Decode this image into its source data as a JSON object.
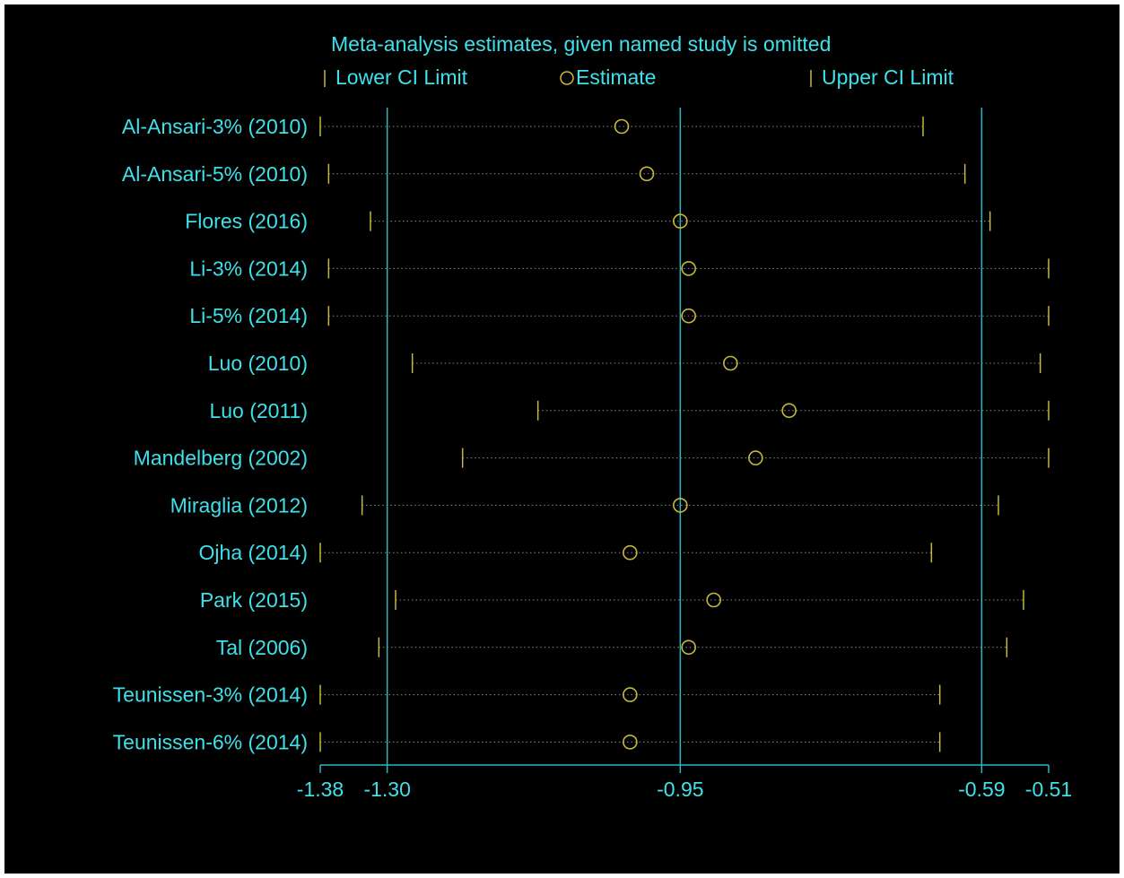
{
  "colors": {
    "background": "#000000",
    "text": "#3fe0ea",
    "axis": "#2ab7c0",
    "marker": "#c7b83a",
    "ci_dots": "#8a8a8a"
  },
  "chart_data": {
    "type": "forest",
    "title": "Meta-analysis estimates, given named study is omitted",
    "legend": {
      "lower": "Lower CI Limit",
      "estimate": "Estimate",
      "upper": "Upper CI Limit"
    },
    "xlim": [
      -1.38,
      -0.51
    ],
    "xticks": [
      {
        "value": -1.38,
        "label": "-1.38"
      },
      {
        "value": -1.3,
        "label": "-1.30"
      },
      {
        "value": -0.95,
        "label": "-0.95"
      },
      {
        "value": -0.59,
        "label": "-0.59"
      },
      {
        "value": -0.51,
        "label": "-0.51"
      }
    ],
    "reference_lines": [
      -1.3,
      -0.95,
      -0.59
    ],
    "studies": [
      {
        "name": "Al-Ansari-3% (2010)",
        "lower": -1.38,
        "estimate": -1.02,
        "upper": -0.66
      },
      {
        "name": "Al-Ansari-5% (2010)",
        "lower": -1.37,
        "estimate": -0.99,
        "upper": -0.61
      },
      {
        "name": "Flores (2016)",
        "lower": -1.32,
        "estimate": -0.95,
        "upper": -0.58
      },
      {
        "name": "Li-3% (2014)",
        "lower": -1.37,
        "estimate": -0.94,
        "upper": -0.51
      },
      {
        "name": "Li-5% (2014)",
        "lower": -1.37,
        "estimate": -0.94,
        "upper": -0.51
      },
      {
        "name": "Luo  (2010)",
        "lower": -1.27,
        "estimate": -0.89,
        "upper": -0.52
      },
      {
        "name": "Luo (2011)",
        "lower": -1.12,
        "estimate": -0.82,
        "upper": -0.51
      },
      {
        "name": "Mandelberg  (2002)",
        "lower": -1.21,
        "estimate": -0.86,
        "upper": -0.51
      },
      {
        "name": "Miraglia (2012)",
        "lower": -1.33,
        "estimate": -0.95,
        "upper": -0.57
      },
      {
        "name": "Ojha (2014)",
        "lower": -1.38,
        "estimate": -1.01,
        "upper": -0.65
      },
      {
        "name": "Park (2015)",
        "lower": -1.29,
        "estimate": -0.91,
        "upper": -0.54
      },
      {
        "name": "Tal  (2006)",
        "lower": -1.31,
        "estimate": -0.94,
        "upper": -0.56
      },
      {
        "name": "Teunissen-3% (2014)",
        "lower": -1.38,
        "estimate": -1.01,
        "upper": -0.64
      },
      {
        "name": "Teunissen-6% (2014)",
        "lower": -1.38,
        "estimate": -1.01,
        "upper": -0.64
      }
    ]
  }
}
